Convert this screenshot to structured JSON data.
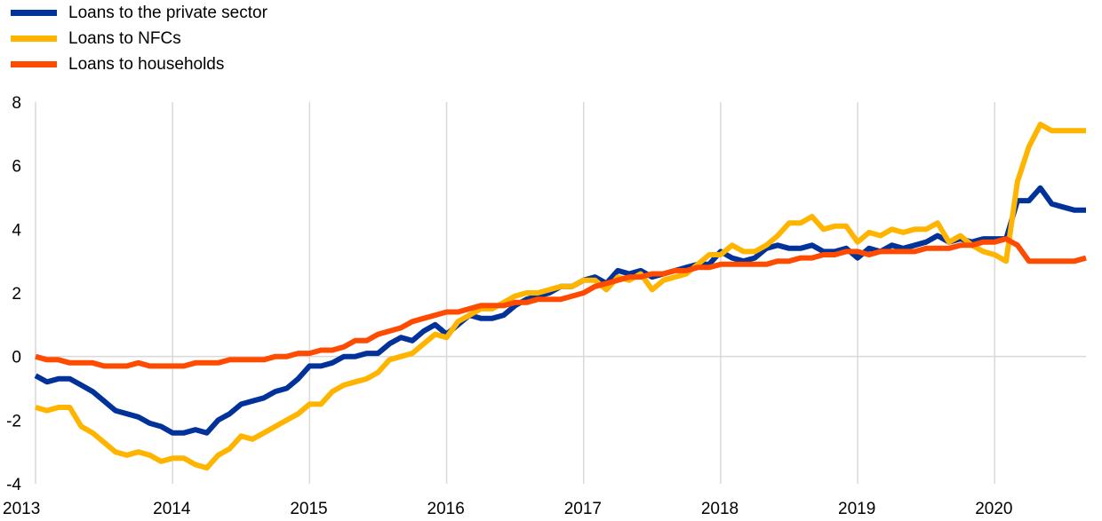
{
  "chart_data": {
    "type": "line",
    "title": "",
    "xlabel": "",
    "ylabel": "",
    "ylim": [
      -4,
      8
    ],
    "yticks": [
      "-4",
      "-2",
      "0",
      "2",
      "4",
      "6",
      "8"
    ],
    "xticks": [
      "2013",
      "2014",
      "2015",
      "2016",
      "2017",
      "2018",
      "2019",
      "2020"
    ],
    "xlim": [
      "2013-01",
      "2020-09"
    ],
    "grid": "vertical",
    "legend_position": "top-left",
    "series": [
      {
        "name": "Loans to the private sector",
        "color": "#003299",
        "points": [
          [
            "2013-01",
            -0.6
          ],
          [
            "2013-02",
            -0.8
          ],
          [
            "2013-03",
            -0.7
          ],
          [
            "2013-04",
            -0.7
          ],
          [
            "2013-05",
            -0.9
          ],
          [
            "2013-06",
            -1.1
          ],
          [
            "2013-07",
            -1.4
          ],
          [
            "2013-08",
            -1.7
          ],
          [
            "2013-09",
            -1.8
          ],
          [
            "2013-10",
            -1.9
          ],
          [
            "2013-11",
            -2.1
          ],
          [
            "2013-12",
            -2.2
          ],
          [
            "2014-01",
            -2.4
          ],
          [
            "2014-02",
            -2.4
          ],
          [
            "2014-03",
            -2.3
          ],
          [
            "2014-04",
            -2.4
          ],
          [
            "2014-05",
            -2.0
          ],
          [
            "2014-06",
            -1.8
          ],
          [
            "2014-07",
            -1.5
          ],
          [
            "2014-08",
            -1.4
          ],
          [
            "2014-09",
            -1.3
          ],
          [
            "2014-10",
            -1.1
          ],
          [
            "2014-11",
            -1.0
          ],
          [
            "2014-12",
            -0.7
          ],
          [
            "2015-01",
            -0.3
          ],
          [
            "2015-02",
            -0.3
          ],
          [
            "2015-03",
            -0.2
          ],
          [
            "2015-04",
            0.0
          ],
          [
            "2015-05",
            0.0
          ],
          [
            "2015-06",
            0.1
          ],
          [
            "2015-07",
            0.1
          ],
          [
            "2015-08",
            0.4
          ],
          [
            "2015-09",
            0.6
          ],
          [
            "2015-10",
            0.5
          ],
          [
            "2015-11",
            0.8
          ],
          [
            "2015-12",
            1.0
          ],
          [
            "2016-01",
            0.7
          ],
          [
            "2016-02",
            1.0
          ],
          [
            "2016-03",
            1.3
          ],
          [
            "2016-04",
            1.2
          ],
          [
            "2016-05",
            1.2
          ],
          [
            "2016-06",
            1.3
          ],
          [
            "2016-07",
            1.6
          ],
          [
            "2016-08",
            1.8
          ],
          [
            "2016-09",
            1.9
          ],
          [
            "2016-10",
            2.0
          ],
          [
            "2016-11",
            2.2
          ],
          [
            "2016-12",
            2.2
          ],
          [
            "2017-01",
            2.4
          ],
          [
            "2017-02",
            2.5
          ],
          [
            "2017-03",
            2.3
          ],
          [
            "2017-04",
            2.7
          ],
          [
            "2017-05",
            2.6
          ],
          [
            "2017-06",
            2.7
          ],
          [
            "2017-07",
            2.5
          ],
          [
            "2017-08",
            2.6
          ],
          [
            "2017-09",
            2.7
          ],
          [
            "2017-10",
            2.8
          ],
          [
            "2017-11",
            2.9
          ],
          [
            "2017-12",
            2.9
          ],
          [
            "2018-01",
            3.3
          ],
          [
            "2018-02",
            3.1
          ],
          [
            "2018-03",
            3.0
          ],
          [
            "2018-04",
            3.1
          ],
          [
            "2018-05",
            3.4
          ],
          [
            "2018-06",
            3.5
          ],
          [
            "2018-07",
            3.4
          ],
          [
            "2018-08",
            3.4
          ],
          [
            "2018-09",
            3.5
          ],
          [
            "2018-10",
            3.3
          ],
          [
            "2018-11",
            3.3
          ],
          [
            "2018-12",
            3.4
          ],
          [
            "2019-01",
            3.1
          ],
          [
            "2019-02",
            3.4
          ],
          [
            "2019-03",
            3.3
          ],
          [
            "2019-04",
            3.5
          ],
          [
            "2019-05",
            3.4
          ],
          [
            "2019-06",
            3.5
          ],
          [
            "2019-07",
            3.6
          ],
          [
            "2019-08",
            3.8
          ],
          [
            "2019-09",
            3.6
          ],
          [
            "2019-10",
            3.7
          ],
          [
            "2019-11",
            3.6
          ],
          [
            "2019-12",
            3.7
          ],
          [
            "2020-01",
            3.7
          ],
          [
            "2020-02",
            3.7
          ],
          [
            "2020-03",
            4.9
          ],
          [
            "2020-04",
            4.9
          ],
          [
            "2020-05",
            5.3
          ],
          [
            "2020-06",
            4.8
          ],
          [
            "2020-07",
            4.7
          ],
          [
            "2020-08",
            4.6
          ],
          [
            "2020-09",
            4.6
          ]
        ]
      },
      {
        "name": "Loans to NFCs",
        "color": "#FFB400",
        "points": [
          [
            "2013-01",
            -1.6
          ],
          [
            "2013-02",
            -1.7
          ],
          [
            "2013-03",
            -1.6
          ],
          [
            "2013-04",
            -1.6
          ],
          [
            "2013-05",
            -2.2
          ],
          [
            "2013-06",
            -2.4
          ],
          [
            "2013-07",
            -2.7
          ],
          [
            "2013-08",
            -3.0
          ],
          [
            "2013-09",
            -3.1
          ],
          [
            "2013-10",
            -3.0
          ],
          [
            "2013-11",
            -3.1
          ],
          [
            "2013-12",
            -3.3
          ],
          [
            "2014-01",
            -3.2
          ],
          [
            "2014-02",
            -3.2
          ],
          [
            "2014-03",
            -3.4
          ],
          [
            "2014-04",
            -3.5
          ],
          [
            "2014-05",
            -3.1
          ],
          [
            "2014-06",
            -2.9
          ],
          [
            "2014-07",
            -2.5
          ],
          [
            "2014-08",
            -2.6
          ],
          [
            "2014-09",
            -2.4
          ],
          [
            "2014-10",
            -2.2
          ],
          [
            "2014-11",
            -2.0
          ],
          [
            "2014-12",
            -1.8
          ],
          [
            "2015-01",
            -1.5
          ],
          [
            "2015-02",
            -1.5
          ],
          [
            "2015-03",
            -1.1
          ],
          [
            "2015-04",
            -0.9
          ],
          [
            "2015-05",
            -0.8
          ],
          [
            "2015-06",
            -0.7
          ],
          [
            "2015-07",
            -0.5
          ],
          [
            "2015-08",
            -0.1
          ],
          [
            "2015-09",
            0.0
          ],
          [
            "2015-10",
            0.1
          ],
          [
            "2015-11",
            0.4
          ],
          [
            "2015-12",
            0.7
          ],
          [
            "2016-01",
            0.6
          ],
          [
            "2016-02",
            1.1
          ],
          [
            "2016-03",
            1.3
          ],
          [
            "2016-04",
            1.5
          ],
          [
            "2016-05",
            1.5
          ],
          [
            "2016-06",
            1.7
          ],
          [
            "2016-07",
            1.9
          ],
          [
            "2016-08",
            2.0
          ],
          [
            "2016-09",
            2.0
          ],
          [
            "2016-10",
            2.1
          ],
          [
            "2016-11",
            2.2
          ],
          [
            "2016-12",
            2.2
          ],
          [
            "2017-01",
            2.4
          ],
          [
            "2017-02",
            2.4
          ],
          [
            "2017-03",
            2.1
          ],
          [
            "2017-04",
            2.5
          ],
          [
            "2017-05",
            2.4
          ],
          [
            "2017-06",
            2.6
          ],
          [
            "2017-07",
            2.1
          ],
          [
            "2017-08",
            2.4
          ],
          [
            "2017-09",
            2.5
          ],
          [
            "2017-10",
            2.6
          ],
          [
            "2017-11",
            2.9
          ],
          [
            "2017-12",
            3.2
          ],
          [
            "2018-01",
            3.2
          ],
          [
            "2018-02",
            3.5
          ],
          [
            "2018-03",
            3.3
          ],
          [
            "2018-04",
            3.3
          ],
          [
            "2018-05",
            3.5
          ],
          [
            "2018-06",
            3.8
          ],
          [
            "2018-07",
            4.2
          ],
          [
            "2018-08",
            4.2
          ],
          [
            "2018-09",
            4.4
          ],
          [
            "2018-10",
            4.0
          ],
          [
            "2018-11",
            4.1
          ],
          [
            "2018-12",
            4.1
          ],
          [
            "2019-01",
            3.6
          ],
          [
            "2019-02",
            3.9
          ],
          [
            "2019-03",
            3.8
          ],
          [
            "2019-04",
            4.0
          ],
          [
            "2019-05",
            3.9
          ],
          [
            "2019-06",
            4.0
          ],
          [
            "2019-07",
            4.0
          ],
          [
            "2019-08",
            4.2
          ],
          [
            "2019-09",
            3.6
          ],
          [
            "2019-10",
            3.8
          ],
          [
            "2019-11",
            3.5
          ],
          [
            "2019-12",
            3.3
          ],
          [
            "2020-01",
            3.2
          ],
          [
            "2020-02",
            3.0
          ],
          [
            "2020-03",
            5.5
          ],
          [
            "2020-04",
            6.6
          ],
          [
            "2020-05",
            7.3
          ],
          [
            "2020-06",
            7.1
          ],
          [
            "2020-07",
            7.1
          ],
          [
            "2020-08",
            7.1
          ],
          [
            "2020-09",
            7.1
          ]
        ]
      },
      {
        "name": "Loans to households",
        "color": "#FF4B00",
        "points": [
          [
            "2013-01",
            0.0
          ],
          [
            "2013-02",
            -0.1
          ],
          [
            "2013-03",
            -0.1
          ],
          [
            "2013-04",
            -0.2
          ],
          [
            "2013-05",
            -0.2
          ],
          [
            "2013-06",
            -0.2
          ],
          [
            "2013-07",
            -0.3
          ],
          [
            "2013-08",
            -0.3
          ],
          [
            "2013-09",
            -0.3
          ],
          [
            "2013-10",
            -0.2
          ],
          [
            "2013-11",
            -0.3
          ],
          [
            "2013-12",
            -0.3
          ],
          [
            "2014-01",
            -0.3
          ],
          [
            "2014-02",
            -0.3
          ],
          [
            "2014-03",
            -0.2
          ],
          [
            "2014-04",
            -0.2
          ],
          [
            "2014-05",
            -0.2
          ],
          [
            "2014-06",
            -0.1
          ],
          [
            "2014-07",
            -0.1
          ],
          [
            "2014-08",
            -0.1
          ],
          [
            "2014-09",
            -0.1
          ],
          [
            "2014-10",
            0.0
          ],
          [
            "2014-11",
            0.0
          ],
          [
            "2014-12",
            0.1
          ],
          [
            "2015-01",
            0.1
          ],
          [
            "2015-02",
            0.2
          ],
          [
            "2015-03",
            0.2
          ],
          [
            "2015-04",
            0.3
          ],
          [
            "2015-05",
            0.5
          ],
          [
            "2015-06",
            0.5
          ],
          [
            "2015-07",
            0.7
          ],
          [
            "2015-08",
            0.8
          ],
          [
            "2015-09",
            0.9
          ],
          [
            "2015-10",
            1.1
          ],
          [
            "2015-11",
            1.2
          ],
          [
            "2015-12",
            1.3
          ],
          [
            "2016-01",
            1.4
          ],
          [
            "2016-02",
            1.4
          ],
          [
            "2016-03",
            1.5
          ],
          [
            "2016-04",
            1.6
          ],
          [
            "2016-05",
            1.6
          ],
          [
            "2016-06",
            1.6
          ],
          [
            "2016-07",
            1.7
          ],
          [
            "2016-08",
            1.7
          ],
          [
            "2016-09",
            1.8
          ],
          [
            "2016-10",
            1.8
          ],
          [
            "2016-11",
            1.8
          ],
          [
            "2016-12",
            1.9
          ],
          [
            "2017-01",
            2.0
          ],
          [
            "2017-02",
            2.2
          ],
          [
            "2017-03",
            2.3
          ],
          [
            "2017-04",
            2.4
          ],
          [
            "2017-05",
            2.5
          ],
          [
            "2017-06",
            2.5
          ],
          [
            "2017-07",
            2.6
          ],
          [
            "2017-08",
            2.6
          ],
          [
            "2017-09",
            2.7
          ],
          [
            "2017-10",
            2.7
          ],
          [
            "2017-11",
            2.8
          ],
          [
            "2017-12",
            2.8
          ],
          [
            "2018-01",
            2.9
          ],
          [
            "2018-02",
            2.9
          ],
          [
            "2018-03",
            2.9
          ],
          [
            "2018-04",
            2.9
          ],
          [
            "2018-05",
            2.9
          ],
          [
            "2018-06",
            3.0
          ],
          [
            "2018-07",
            3.0
          ],
          [
            "2018-08",
            3.1
          ],
          [
            "2018-09",
            3.1
          ],
          [
            "2018-10",
            3.2
          ],
          [
            "2018-11",
            3.2
          ],
          [
            "2018-12",
            3.3
          ],
          [
            "2019-01",
            3.3
          ],
          [
            "2019-02",
            3.2
          ],
          [
            "2019-03",
            3.3
          ],
          [
            "2019-04",
            3.3
          ],
          [
            "2019-05",
            3.3
          ],
          [
            "2019-06",
            3.3
          ],
          [
            "2019-07",
            3.4
          ],
          [
            "2019-08",
            3.4
          ],
          [
            "2019-09",
            3.4
          ],
          [
            "2019-10",
            3.5
          ],
          [
            "2019-11",
            3.5
          ],
          [
            "2019-12",
            3.6
          ],
          [
            "2020-01",
            3.6
          ],
          [
            "2020-02",
            3.7
          ],
          [
            "2020-03",
            3.5
          ],
          [
            "2020-04",
            3.0
          ],
          [
            "2020-05",
            3.0
          ],
          [
            "2020-06",
            3.0
          ],
          [
            "2020-07",
            3.0
          ],
          [
            "2020-08",
            3.0
          ],
          [
            "2020-09",
            3.1
          ]
        ]
      }
    ]
  }
}
